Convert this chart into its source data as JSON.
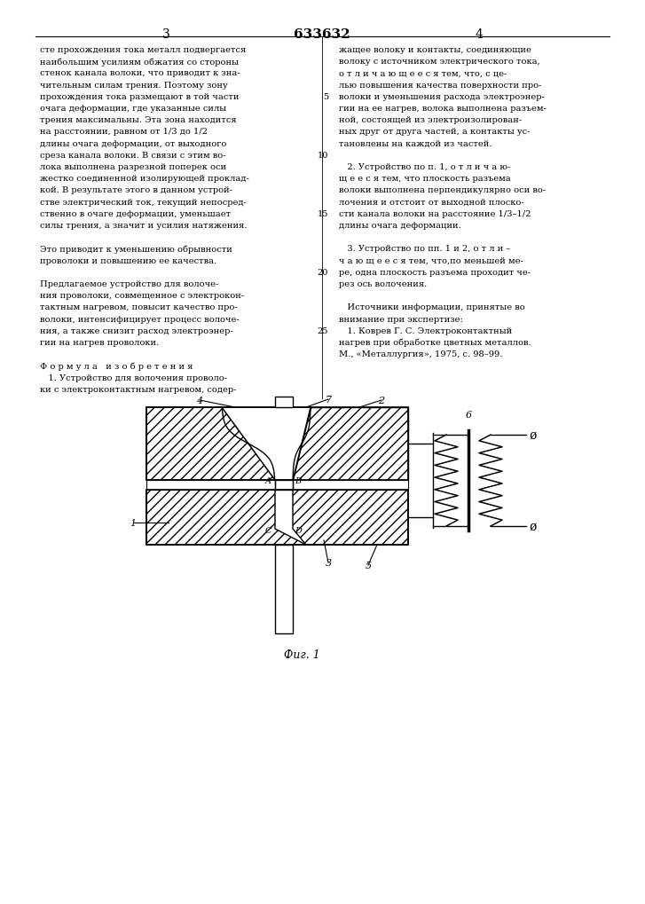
{
  "title": "633632",
  "page_left": "3",
  "page_right": "4",
  "fig_caption": "Фиг. 1",
  "bg_color": "#ffffff",
  "line_color": "#000000",
  "left_lines": [
    "сте прохождения тока металл подвергается",
    "наибольшим усилиям обжатия со стороны",
    "стенок канала волоки, что приводит к зна-",
    "чительным силам трения. Поэтому зону",
    "прохождения тока размещают в той части",
    "очага деформации, где указанные силы",
    "трения максимальны. Эта зона находится",
    "на расстоянии, равном от 1/3 до 1/2",
    "длины очага деформации, от выходного",
    "среза канала волоки. В связи с этим во-",
    "лока выполнена разрезной поперек оси",
    "жестко соединенной изолирующей проклад-",
    "кой. В результате этого в данном устрой-",
    "стве электрический ток, текущий непосред-",
    "ственно в очаге деформации, уменьшает",
    "силы трения, а значит и усилия натяжения.",
    "",
    "Это приводит к уменьшению обрывности",
    "проволоки и повышению ее качества.",
    "",
    "Предлагаемое устройство для волоче-",
    "ния проволоки, совмещенное с электрокон-",
    "тактным нагревом, повысит качество про-",
    "волоки, интенсифицирует процесс волоче-",
    "ния, а также снизит расход электроэнер-",
    "гии на нагрев проволоки.",
    "",
    "Ф о р м у л а   и з о б р е т е н и я",
    "   1. Устройство для волочения проволо-",
    "ки с электроконтактным нагревом, содер-"
  ],
  "right_lines": [
    "жащее волоку и контакты, соединяющие",
    "волоку с источником электрического тока,",
    "о т л и ч а ю щ е е с я тем, что, с це-",
    "лью повышения качества поверхности про-",
    "волоки и уменьшения расхода электроэнер-",
    "гии на ее нагрев, волока выполнена разъем-",
    "ной, состоящей из электроизолирован-",
    "ных друг от друга частей, а контакты ус-",
    "тановлены на каждой из частей.",
    "",
    "   2. Устройство по п. 1, о т л и ч а ю-",
    "щ е е с я тем, что плоскость разъема",
    "волоки выполнена перпендикулярно оси во-",
    "лочения и отстоит от выходной плоско-",
    "сти канала волоки на расстояние 1/3–1/2",
    "длины очага деформации.",
    "",
    "   3. Устройство по пп. 1 и 2, о т л и –",
    "ч а ю щ е е с я тем, что,по меньшей ме-",
    "ре, одна плоскость разъема проходит че-",
    "рез ось волочения.",
    "",
    "   Источники информации, принятые во",
    "внимание при экспертизе:",
    "   1. Коврев Г. С. Электроконтактный",
    "нагрев при обработке цветных металлов.",
    "М., «Металлургия», 1975, с. 98–99."
  ],
  "line_num_indices": [
    4,
    9,
    14,
    19,
    24
  ],
  "line_nums": [
    5,
    10,
    15,
    20,
    25
  ]
}
